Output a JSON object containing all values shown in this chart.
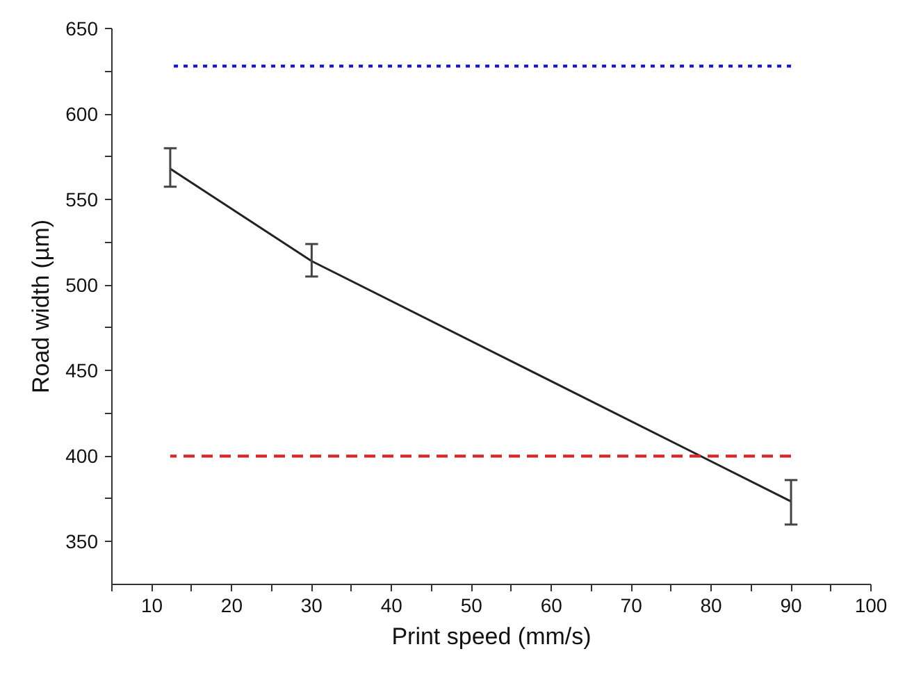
{
  "chart_data": {
    "type": "line",
    "xlabel": "Print speed (mm/s)",
    "ylabel": "Road width (µm)",
    "xlim": [
      5,
      100
    ],
    "ylim": [
      325,
      650
    ],
    "xticks": [
      {
        "value": 5,
        "label": null
      },
      10,
      {
        "value": 15,
        "label": null
      },
      20,
      {
        "value": 25,
        "label": null
      },
      30,
      {
        "value": 35,
        "label": null
      },
      40,
      {
        "value": 45,
        "label": null
      },
      50,
      {
        "value": 55,
        "label": null
      },
      60,
      {
        "value": 65,
        "label": null
      },
      70,
      {
        "value": 75,
        "label": null
      },
      80,
      {
        "value": 85,
        "label": null
      },
      90,
      {
        "value": 95,
        "label": null
      },
      100
    ],
    "yticks": [
      350,
      {
        "value": 375,
        "label": null
      },
      400,
      {
        "value": 425,
        "label": null
      },
      450,
      {
        "value": 475,
        "label": null
      },
      500,
      {
        "value": 525,
        "label": null
      },
      550,
      {
        "value": 575,
        "label": null
      },
      600,
      {
        "value": 625,
        "label": null
      },
      650
    ],
    "grid": false,
    "marker": "none",
    "series": [
      {
        "color": "#222222",
        "x": [
          12.3,
          30,
          90
        ],
        "values": [
          568,
          514,
          373.5
        ],
        "errors": [
          [
            557.5,
            580
          ],
          [
            505,
            524
          ],
          [
            360,
            386
          ]
        ],
        "line_style": "solid"
      },
      {
        "color": "#1a1acc",
        "x": [
          12.3,
          90
        ],
        "values": [
          628,
          628
        ],
        "line_style": "dotted"
      },
      {
        "color": "#d62728",
        "x": [
          12.3,
          90
        ],
        "values": [
          400,
          400
        ],
        "line_style": "dashed"
      }
    ]
  }
}
